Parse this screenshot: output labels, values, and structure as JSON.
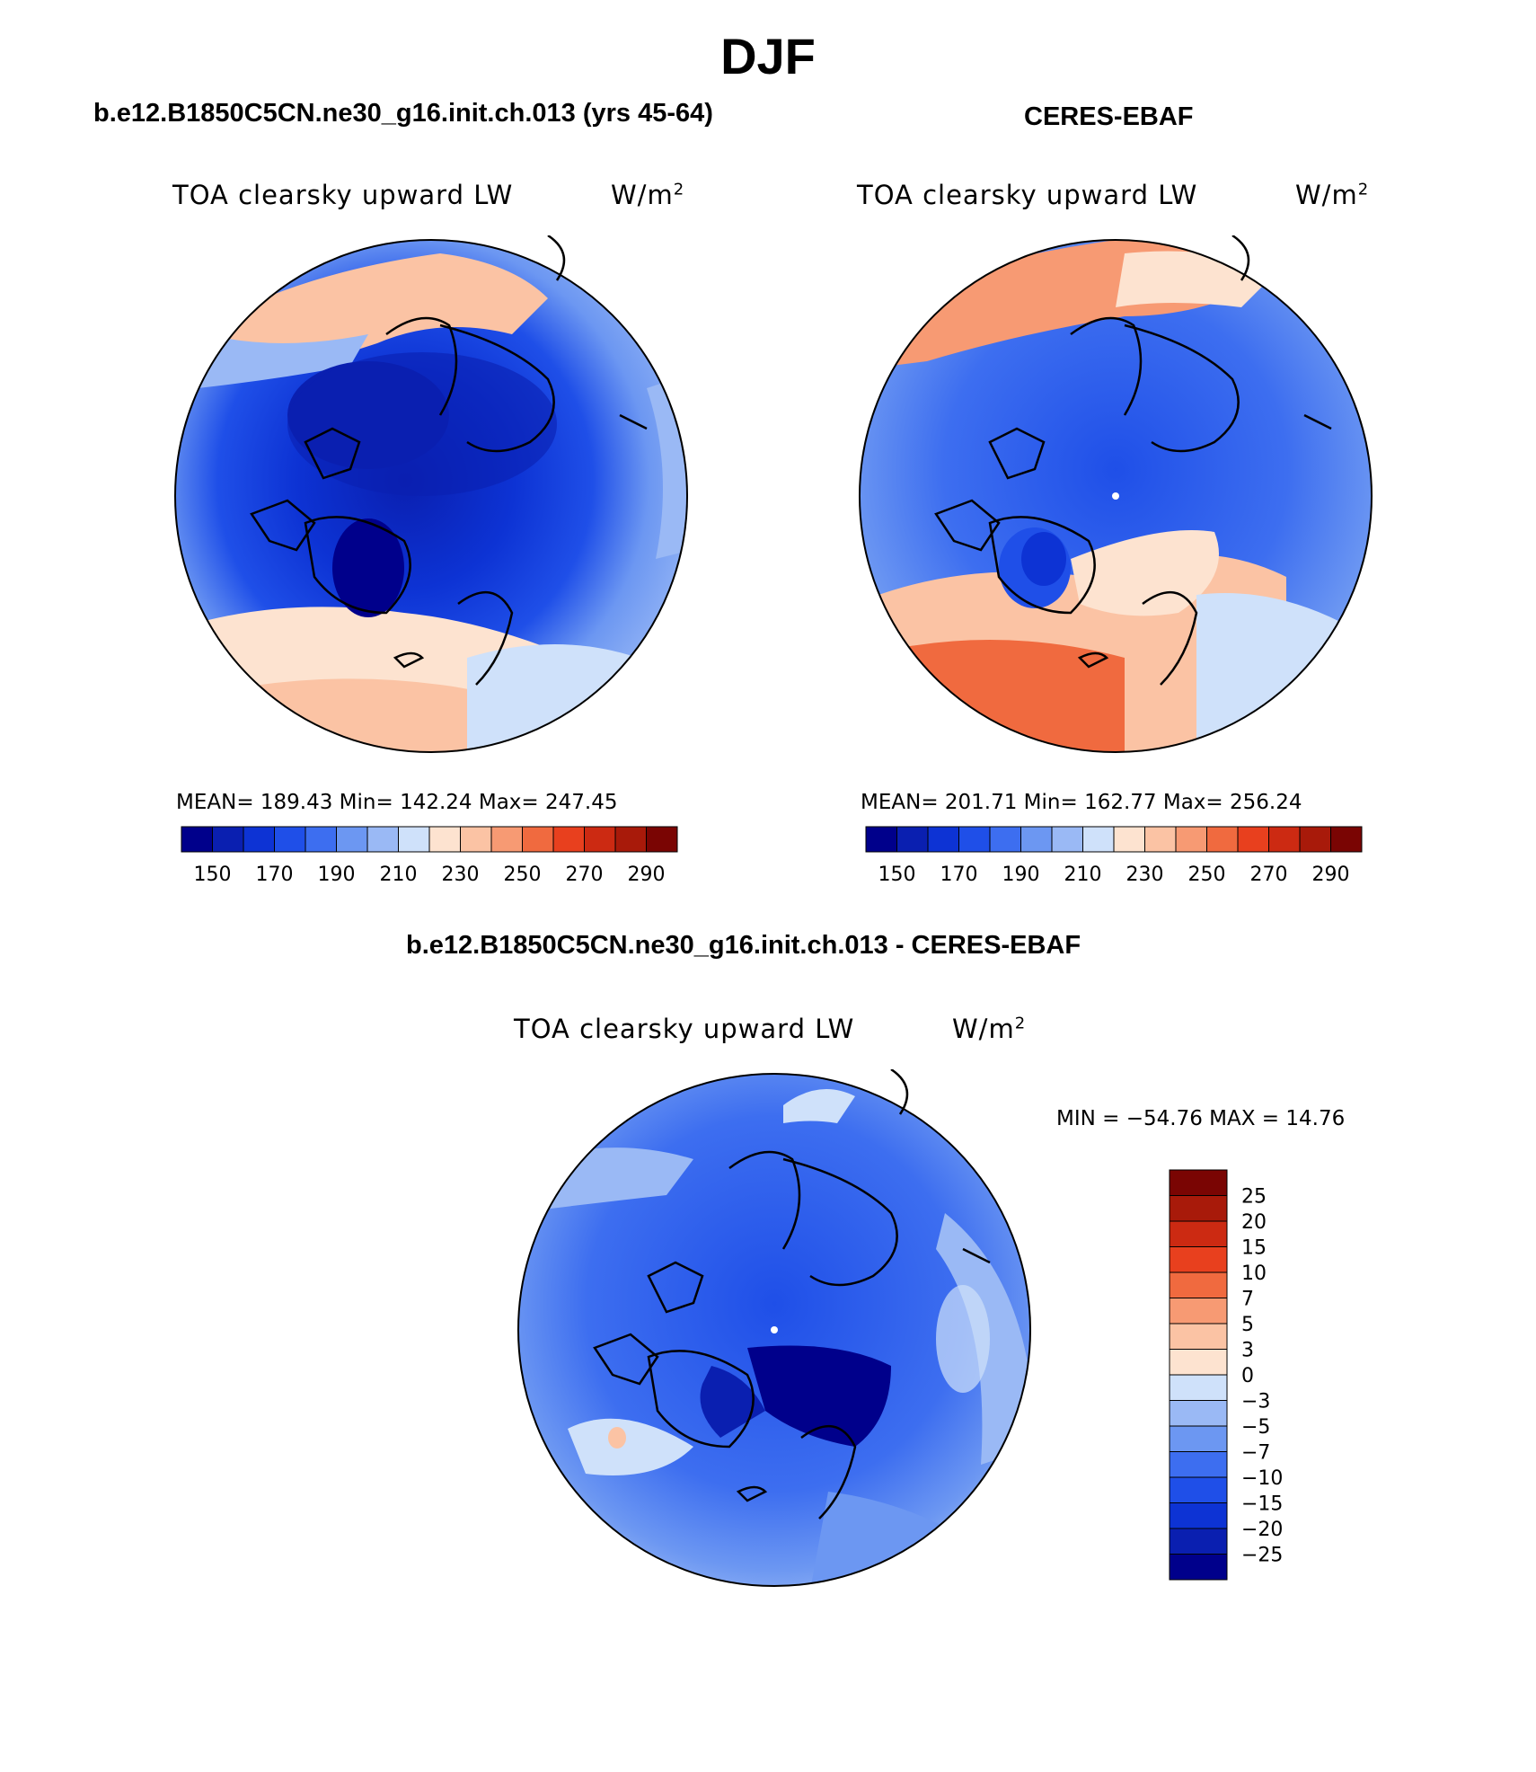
{
  "figure": {
    "season": "DJF",
    "left_panel_title": "b.e12.B1850C5CN.ne30_g16.init.ch.013 (yrs 45-64)",
    "right_panel_title": "CERES-EBAF",
    "diff_panel_title": "b.e12.B1850C5CN.ne30_g16.init.ch.013 - CERES-EBAF"
  },
  "panels": {
    "model": {
      "variable": "TOA clearsky upward LW",
      "units": "W/m",
      "units_exp": "2",
      "stats": "MEAN= 189.43   Min= 142.24   Max= 247.45"
    },
    "obs": {
      "variable": "TOA clearsky upward LW",
      "units": "W/m",
      "units_exp": "2",
      "stats": "MEAN= 201.71   Min= 162.77   Max= 256.24"
    },
    "diff": {
      "variable": "TOA clearsky upward LW",
      "units": "W/m",
      "units_exp": "2",
      "stats": "MIN = −54.76 MAX =  14.76"
    }
  },
  "colorbars": {
    "abs_colors": [
      "#00008b",
      "#0a1fb0",
      "#0d33d4",
      "#1f4fe8",
      "#3d6ef0",
      "#6c97f2",
      "#9ab9f5",
      "#cfe1fa",
      "#fde3d0",
      "#fbc3a4",
      "#f79a73",
      "#f06a3f",
      "#e8401e",
      "#cc2a12",
      "#a81a0a",
      "#7a0503"
    ],
    "abs_labels": [
      "150",
      "170",
      "190",
      "210",
      "230",
      "250",
      "270",
      "290"
    ],
    "diff_colors": [
      "#00008b",
      "#0a1fb0",
      "#0d33d4",
      "#1f4fe8",
      "#3d6ef0",
      "#6c97f2",
      "#9ab9f5",
      "#cfe1fa",
      "#fde3d0",
      "#fbc3a4",
      "#f79a73",
      "#f06a3f",
      "#e8401e",
      "#cc2a12",
      "#a81a0a",
      "#7a0503"
    ],
    "diff_labels": [
      "25",
      "20",
      "15",
      "10",
      "7",
      "5",
      "3",
      "0",
      "−3",
      "−5",
      "−7",
      "−10",
      "−15",
      "−20",
      "−25"
    ]
  }
}
